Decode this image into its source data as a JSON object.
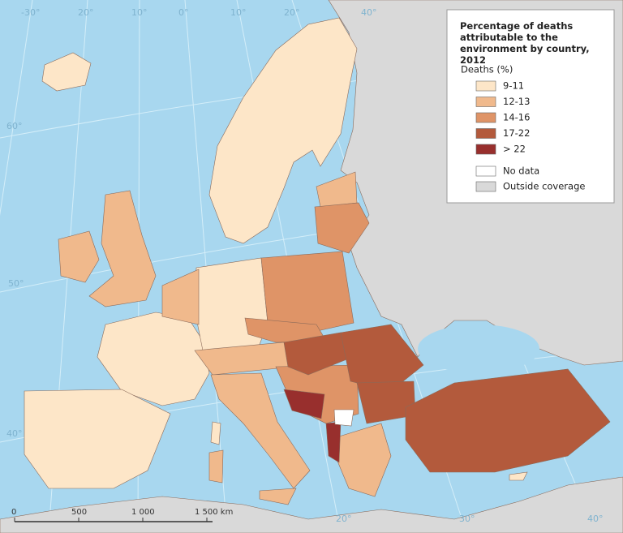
{
  "title": "Percentage of deaths attributable to the environment by country, 2012",
  "legend": {
    "heading": "Deaths (%)",
    "items": [
      {
        "label": "9-11",
        "color": "#fde6c8"
      },
      {
        "label": "12-13",
        "color": "#f0b98c"
      },
      {
        "label": "14-16",
        "color": "#df9467"
      },
      {
        "label": "17-22",
        "color": "#b35a3c"
      },
      {
        "label": "> 22",
        "color": "#982f2d"
      }
    ],
    "extra": [
      {
        "label": "No data",
        "color": "#ffffff"
      },
      {
        "label": "Outside coverage",
        "color": "#d9d9d9"
      }
    ]
  },
  "graticule_labels": [
    "-30°",
    "20°",
    "10°",
    "0°",
    "10°",
    "20°",
    "40°",
    "60°",
    "50°",
    "40°",
    "20°",
    "30°",
    "40°"
  ],
  "scale_labels": [
    "0",
    "500",
    "1 000",
    "1 500 km"
  ]
}
